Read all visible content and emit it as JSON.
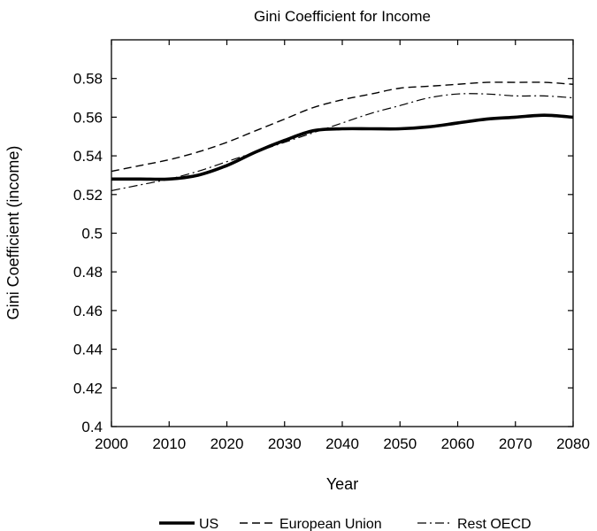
{
  "chart_data": {
    "type": "line",
    "title": "Gini Coefficient for Income",
    "xlabel": "Year",
    "ylabel": "Gini Coefficient (income)",
    "xlim": [
      2000,
      2080
    ],
    "ylim": [
      0.4,
      0.6
    ],
    "x_ticks": [
      "2000",
      "2010",
      "2020",
      "2030",
      "2040",
      "2050",
      "2060",
      "2070",
      "2080"
    ],
    "y_ticks": [
      "0.4",
      "0.42",
      "0.44",
      "0.46",
      "0.48",
      "0.5",
      "0.52",
      "0.54",
      "0.56",
      "0.58"
    ],
    "grid": false,
    "legend_position": "bottom",
    "series": [
      {
        "name": "US",
        "style": "solid-thick",
        "x": [
          2000,
          2005,
          2010,
          2015,
          2020,
          2025,
          2030,
          2035,
          2040,
          2045,
          2050,
          2055,
          2060,
          2065,
          2070,
          2075,
          2080
        ],
        "values": [
          0.528,
          0.528,
          0.528,
          0.53,
          0.535,
          0.542,
          0.548,
          0.553,
          0.554,
          0.554,
          0.554,
          0.555,
          0.557,
          0.559,
          0.56,
          0.561,
          0.56
        ]
      },
      {
        "name": "European Union",
        "style": "dashed",
        "x": [
          2000,
          2005,
          2010,
          2015,
          2020,
          2025,
          2030,
          2035,
          2040,
          2045,
          2050,
          2055,
          2060,
          2065,
          2070,
          2075,
          2080
        ],
        "values": [
          0.532,
          0.535,
          0.538,
          0.542,
          0.547,
          0.553,
          0.559,
          0.565,
          0.569,
          0.572,
          0.575,
          0.576,
          0.577,
          0.578,
          0.578,
          0.578,
          0.577
        ]
      },
      {
        "name": "Rest OECD",
        "style": "dash-dot",
        "x": [
          2000,
          2005,
          2010,
          2015,
          2020,
          2025,
          2030,
          2035,
          2040,
          2045,
          2050,
          2055,
          2060,
          2065,
          2070,
          2075,
          2080
        ],
        "values": [
          0.522,
          0.525,
          0.528,
          0.532,
          0.537,
          0.542,
          0.547,
          0.552,
          0.557,
          0.562,
          0.566,
          0.57,
          0.572,
          0.572,
          0.571,
          0.571,
          0.57
        ]
      }
    ]
  }
}
